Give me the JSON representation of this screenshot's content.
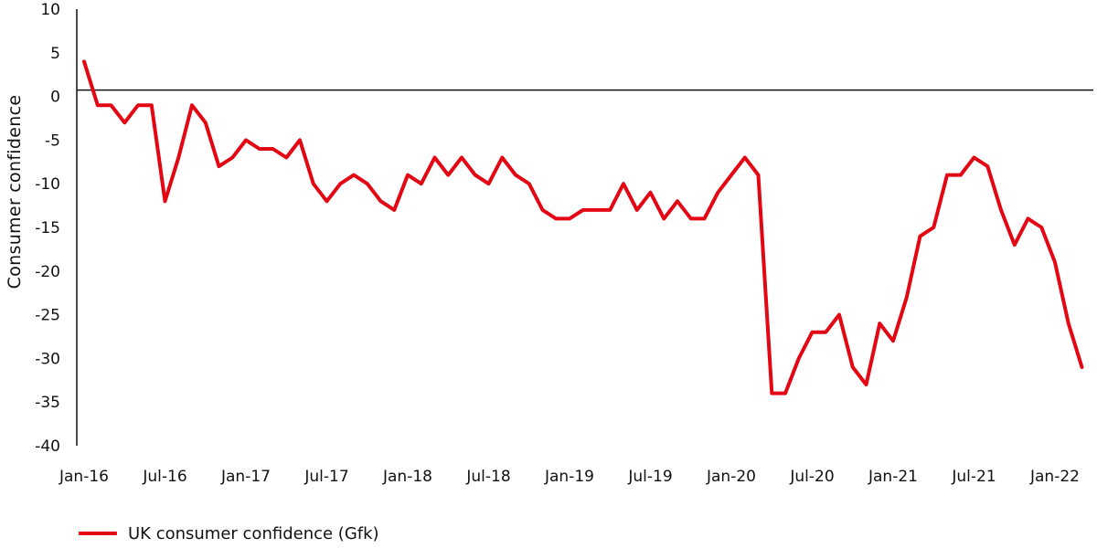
{
  "chart_data": {
    "type": "line",
    "ylabel": "Consumer  confidence",
    "ylim": [
      -40,
      10
    ],
    "yticks": [
      10,
      5,
      0,
      -5,
      -10,
      -15,
      -20,
      -25,
      -30,
      -35,
      -40
    ],
    "xtick_labels": [
      "Jan-16",
      "Jul-16",
      "Jan-17",
      "Jul-17",
      "Jan-18",
      "Jul-18",
      "Jan-19",
      "Jul-19",
      "Jan-20",
      "Jul-20",
      "Jan-21",
      "Jul-21",
      "Jan-22"
    ],
    "series": [
      {
        "name": "UK consumer confidence (Gfk)",
        "color": "#e30613",
        "values": [
          4,
          -1,
          -1,
          -3,
          -1,
          -1,
          -12,
          -7,
          -1,
          -3,
          -8,
          -7,
          -5,
          -6,
          -6,
          -7,
          -5,
          -10,
          -12,
          -10,
          -9,
          -10,
          -12,
          -13,
          -9,
          -10,
          -7,
          -9,
          -7,
          -9,
          -10,
          -7,
          -9,
          -10,
          -13,
          -14,
          -14,
          -13,
          -13,
          -13,
          -10,
          -13,
          -11,
          -14,
          -12,
          -14,
          -14,
          -11,
          -9,
          -7,
          -9,
          -34,
          -34,
          -30,
          -27,
          -27,
          -25,
          -31,
          -33,
          -26,
          -28,
          -23,
          -16,
          -15,
          -9,
          -9,
          -7,
          -8,
          -13,
          -17,
          -14,
          -15,
          -19,
          -26,
          -31
        ]
      }
    ],
    "grid": false,
    "legend_position": "bottom-left"
  }
}
